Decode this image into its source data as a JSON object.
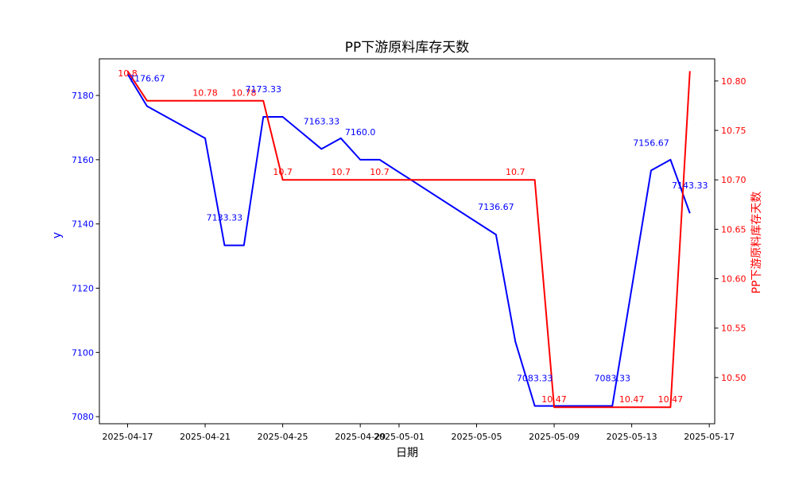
{
  "title": "PP下游原料库存天数",
  "axes": {
    "x_label": "日期",
    "y_left_label": "y",
    "y_right_label": "PP下游原料库存天数",
    "x_tick_labels": [
      "2025-04-17",
      "2025-04-21",
      "2025-04-25",
      "2025-04-29",
      "2025-05-01",
      "2025-05-05",
      "2025-05-09",
      "2025-05-13",
      "2025-05-17"
    ],
    "y_left_tick_labels": [
      "7080",
      "7100",
      "7120",
      "7140",
      "7160",
      "7180"
    ],
    "y_right_tick_labels": [
      "10.50",
      "10.55",
      "10.60",
      "10.65",
      "10.70",
      "10.75",
      "10.80"
    ]
  },
  "colors": {
    "left_series": "#0000ff",
    "right_series": "#ff0000",
    "text": "#000000",
    "background": "#ffffff"
  },
  "chart_data": {
    "type": "line",
    "title": "PP下游原料库存天数",
    "xlabel": "日期",
    "ylabel_left": "y",
    "ylabel_right": "PP下游原料库存天数",
    "legend": "none",
    "grid": false,
    "x_start_date": "2025-04-17",
    "x_end_date": "2025-05-16",
    "xlim_day_index": [
      -1.455,
      30.28
    ],
    "ylim_left": [
      7077.8,
      7191.4
    ],
    "ylim_right": [
      10.4533,
      10.8224
    ],
    "x_ticks": [
      "2025-04-17",
      "2025-04-21",
      "2025-04-25",
      "2025-04-29",
      "2025-05-01",
      "2025-05-05",
      "2025-05-09",
      "2025-05-13",
      "2025-05-17"
    ],
    "y_ticks_left": [
      7080,
      7100,
      7120,
      7140,
      7160,
      7180
    ],
    "y_ticks_right": [
      10.5,
      10.55,
      10.6,
      10.65,
      10.7,
      10.75,
      10.8
    ],
    "series": [
      {
        "name": "y",
        "axis": "left",
        "color": "#0000ff",
        "points": [
          [
            "2025-04-17",
            7186.67
          ],
          [
            "2025-04-18",
            7176.67
          ],
          [
            "2025-04-21",
            7166.67
          ],
          [
            "2025-04-22",
            7133.33
          ],
          [
            "2025-04-23",
            7133.33
          ],
          [
            "2025-04-24",
            7173.33
          ],
          [
            "2025-04-25",
            7173.33
          ],
          [
            "2025-04-27",
            7163.33
          ],
          [
            "2025-04-28",
            7166.67
          ],
          [
            "2025-04-29",
            7160.0
          ],
          [
            "2025-04-30",
            7160.0
          ],
          [
            "2025-05-06",
            7136.67
          ],
          [
            "2025-05-07",
            7103.33
          ],
          [
            "2025-05-08",
            7083.33
          ],
          [
            "2025-05-12",
            7083.33
          ],
          [
            "2025-05-14",
            7156.67
          ],
          [
            "2025-05-15",
            7160.0
          ],
          [
            "2025-05-16",
            7143.33
          ]
        ],
        "annotations": [
          [
            "2025-04-18",
            "7176.67"
          ],
          [
            "2025-04-22",
            "7133.33"
          ],
          [
            "2025-04-24",
            "7173.33"
          ],
          [
            "2025-04-27",
            "7163.33"
          ],
          [
            "2025-04-29",
            "7160.0"
          ],
          [
            "2025-05-06",
            "7136.67"
          ],
          [
            "2025-05-08",
            "7083.33"
          ],
          [
            "2025-05-12",
            "7083.33"
          ],
          [
            "2025-05-14",
            "7156.67"
          ],
          [
            "2025-05-16",
            "7143.33"
          ]
        ],
        "annotation_offset": [
          0,
          -35
        ]
      },
      {
        "name": "PP下游原料库存天数",
        "axis": "right",
        "color": "#ff0000",
        "points": [
          [
            "2025-04-17",
            10.81
          ],
          [
            "2025-04-18",
            10.78
          ],
          [
            "2025-04-24",
            10.78
          ],
          [
            "2025-04-25",
            10.7
          ],
          [
            "2025-05-08",
            10.7
          ],
          [
            "2025-05-09",
            10.47
          ],
          [
            "2025-05-15",
            10.47
          ],
          [
            "2025-05-16",
            10.81
          ]
        ],
        "annotations": [
          [
            "2025-04-17",
            "10.8"
          ],
          [
            "2025-04-21",
            "10.78"
          ],
          [
            "2025-04-23",
            "10.78"
          ],
          [
            "2025-04-25",
            "10.7"
          ],
          [
            "2025-04-28",
            "10.7"
          ],
          [
            "2025-04-30",
            "10.7"
          ],
          [
            "2025-05-07",
            "10.7"
          ],
          [
            "2025-05-09",
            "10.47"
          ],
          [
            "2025-05-13",
            "10.47"
          ],
          [
            "2025-05-15",
            "10.47"
          ]
        ],
        "annotation_offset": [
          0,
          -10
        ]
      }
    ]
  }
}
